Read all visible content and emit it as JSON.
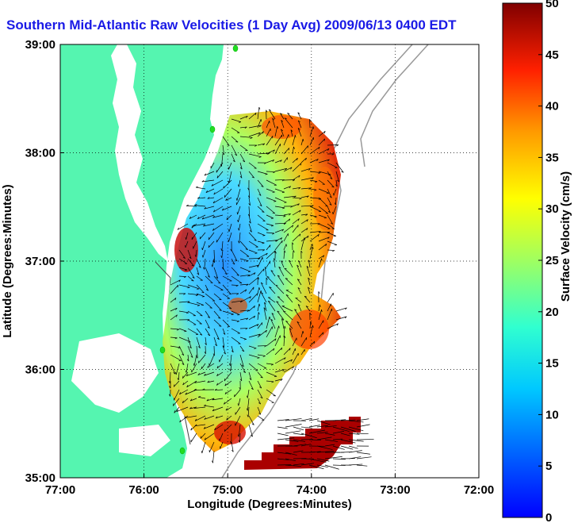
{
  "title": "Southern Mid-Atlantic Raw Velocities (1 Day Avg) 2009/06/13 0400 EDT",
  "map": {
    "xlabel": "Longitude (Degrees:Minutes)",
    "ylabel": "Latitude (Degrees:Minutes)",
    "x_ticks": [
      "77:00",
      "76:00",
      "75:00",
      "74:00",
      "73:00",
      "72:00"
    ],
    "y_ticks": [
      "39:00",
      "38:00",
      "37:00",
      "36:00",
      "35:00"
    ],
    "lon_range": [
      -77,
      -72
    ],
    "lat_range": [
      35,
      39
    ],
    "land_color": "#55f5b0",
    "grid": "dotted"
  },
  "colorbar": {
    "label": "Surface Velocity (cm/s)",
    "ticks": [
      "0",
      "5",
      "10",
      "15",
      "20",
      "25",
      "30",
      "35",
      "40",
      "45",
      "50"
    ],
    "range": [
      0,
      50
    ],
    "colormap": "jet"
  },
  "markers": {
    "color": "#22dd22",
    "names": [
      "station-1",
      "station-2",
      "station-3",
      "station-4"
    ]
  }
}
